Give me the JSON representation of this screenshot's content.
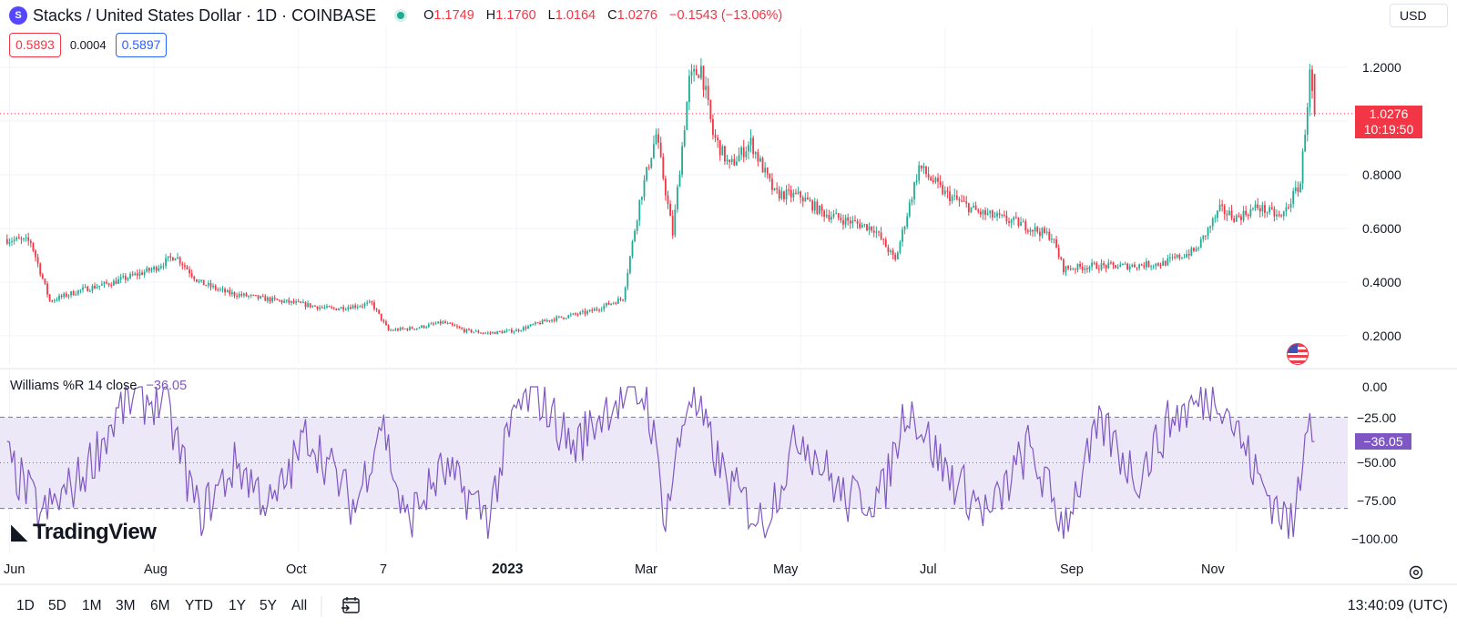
{
  "header": {
    "coin_glyph": "S",
    "symbol": "Stacks / United States Dollar · 1D · COINBASE",
    "o_label": "O",
    "o_value": "1.1749",
    "h_label": "H",
    "h_value": "1.1760",
    "l_label": "L",
    "l_value": "1.0164",
    "c_label": "C",
    "c_value": "1.0276",
    "change": "−0.1543 (−13.06%)",
    "live_icon": "live-dot-icon"
  },
  "bidask": {
    "sell": "0.5893",
    "spread": "0.0004",
    "buy": "0.5897"
  },
  "currency": "USD",
  "indicator": {
    "name": "Williams %R",
    "params": "14 close",
    "value": "−36.05"
  },
  "price_axis": [
    "1.2000",
    "0.8000",
    "0.6000",
    "0.4000",
    "0.2000"
  ],
  "last_price": {
    "value": "1.0276",
    "countdown": "10:19:50"
  },
  "wr_axis": [
    "0.00",
    "−25.00",
    "−50.00",
    "−75.00",
    "−100.00"
  ],
  "wr_last": "−36.05",
  "time_axis": [
    "Jun",
    "Aug",
    "Oct",
    "7",
    "2023",
    "Mar",
    "May",
    "Jul",
    "Sep",
    "Nov"
  ],
  "watermark": "TradingView",
  "ranges": [
    "1D",
    "5D",
    "1M",
    "3M",
    "6M",
    "YTD",
    "1Y",
    "5Y",
    "All"
  ],
  "clock": "13:40:09 (UTC)",
  "colors": {
    "up": "#22ab94",
    "down": "#f23645",
    "wr_line": "#7e57c2",
    "wr_band": "#ede8f7"
  },
  "chart_data": [
    {
      "type": "candlestick",
      "title": "Stacks / United States Dollar · 1D · COINBASE",
      "y_unit": "USD",
      "ylim": [
        0.13,
        1.33
      ],
      "y_ticks": [
        0.2,
        0.4,
        0.6,
        0.8,
        1.2
      ],
      "x_ticks": [
        "Jun",
        "Aug",
        "Oct",
        "7",
        "2023",
        "Mar",
        "May",
        "Jul",
        "Sep",
        "Nov"
      ],
      "last": {
        "open": 1.1749,
        "high": 1.176,
        "low": 1.0164,
        "close": 1.0276
      },
      "approx_close_path": [
        [
          "2022-05-31",
          0.56
        ],
        [
          "2022-06-10",
          0.55
        ],
        [
          "2022-06-18",
          0.33
        ],
        [
          "2022-07-01",
          0.37
        ],
        [
          "2022-07-15",
          0.4
        ],
        [
          "2022-08-01",
          0.45
        ],
        [
          "2022-08-10",
          0.5
        ],
        [
          "2022-08-20",
          0.4
        ],
        [
          "2022-09-01",
          0.36
        ],
        [
          "2022-09-15",
          0.34
        ],
        [
          "2022-10-01",
          0.32
        ],
        [
          "2022-10-15",
          0.3
        ],
        [
          "2022-11-01",
          0.32
        ],
        [
          "2022-11-08",
          0.22
        ],
        [
          "2022-11-20",
          0.23
        ],
        [
          "2022-12-01",
          0.25
        ],
        [
          "2022-12-10",
          0.22
        ],
        [
          "2022-12-20",
          0.21
        ],
        [
          "2023-01-01",
          0.22
        ],
        [
          "2023-01-15",
          0.26
        ],
        [
          "2023-02-01",
          0.29
        ],
        [
          "2023-02-15",
          0.34
        ],
        [
          "2023-02-22",
          0.7
        ],
        [
          "2023-03-01",
          0.95
        ],
        [
          "2023-03-08",
          0.58
        ],
        [
          "2023-03-15",
          1.15
        ],
        [
          "2023-03-20",
          1.2
        ],
        [
          "2023-03-25",
          0.95
        ],
        [
          "2023-04-01",
          0.83
        ],
        [
          "2023-04-10",
          0.92
        ],
        [
          "2023-04-20",
          0.73
        ],
        [
          "2023-05-01",
          0.72
        ],
        [
          "2023-05-10",
          0.66
        ],
        [
          "2023-05-20",
          0.63
        ],
        [
          "2023-06-01",
          0.6
        ],
        [
          "2023-06-10",
          0.48
        ],
        [
          "2023-06-20",
          0.83
        ],
        [
          "2023-07-01",
          0.73
        ],
        [
          "2023-07-15",
          0.66
        ],
        [
          "2023-08-01",
          0.62
        ],
        [
          "2023-08-15",
          0.57
        ],
        [
          "2023-08-20",
          0.45
        ],
        [
          "2023-09-01",
          0.46
        ],
        [
          "2023-09-15",
          0.46
        ],
        [
          "2023-10-01",
          0.47
        ],
        [
          "2023-10-15",
          0.52
        ],
        [
          "2023-10-25",
          0.67
        ],
        [
          "2023-11-01",
          0.64
        ],
        [
          "2023-11-10",
          0.68
        ],
        [
          "2023-11-20",
          0.64
        ],
        [
          "2023-11-28",
          0.77
        ],
        [
          "2023-12-02",
          1.17
        ],
        [
          "2023-12-04",
          1.03
        ]
      ]
    },
    {
      "type": "line",
      "title": "Williams %R 14 close",
      "ylim": [
        -100,
        0
      ],
      "y_ticks": [
        0,
        -25,
        -50,
        -75,
        -100
      ],
      "bands": [
        -20,
        -50,
        -80
      ],
      "last_value": -36.05,
      "approx_path": [
        [
          "2022-05-31",
          -48
        ],
        [
          "2022-06-15",
          -85
        ],
        [
          "2022-07-01",
          -60
        ],
        [
          "2022-07-20",
          -10
        ],
        [
          "2022-08-05",
          -8
        ],
        [
          "2022-08-20",
          -85
        ],
        [
          "2022-09-05",
          -50
        ],
        [
          "2022-09-20",
          -80
        ],
        [
          "2022-10-05",
          -30
        ],
        [
          "2022-10-25",
          -80
        ],
        [
          "2022-11-05",
          -20
        ],
        [
          "2022-11-15",
          -90
        ],
        [
          "2022-12-01",
          -55
        ],
        [
          "2022-12-20",
          -85
        ],
        [
          "2023-01-01",
          -15
        ],
        [
          "2023-01-10",
          -5
        ],
        [
          "2023-01-25",
          -40
        ],
        [
          "2023-02-10",
          -10
        ],
        [
          "2023-02-25",
          -5
        ],
        [
          "2023-03-05",
          -85
        ],
        [
          "2023-03-15",
          -3
        ],
        [
          "2023-03-30",
          -60
        ],
        [
          "2023-04-15",
          -90
        ],
        [
          "2023-05-01",
          -30
        ],
        [
          "2023-05-20",
          -75
        ],
        [
          "2023-06-05",
          -70
        ],
        [
          "2023-06-15",
          -10
        ],
        [
          "2023-07-01",
          -55
        ],
        [
          "2023-07-20",
          -85
        ],
        [
          "2023-08-05",
          -40
        ],
        [
          "2023-08-20",
          -90
        ],
        [
          "2023-09-05",
          -25
        ],
        [
          "2023-09-20",
          -60
        ],
        [
          "2023-10-05",
          -20
        ],
        [
          "2023-10-25",
          -4
        ],
        [
          "2023-11-10",
          -60
        ],
        [
          "2023-11-25",
          -95
        ],
        [
          "2023-12-02",
          -2
        ],
        [
          "2023-12-04",
          -36.05
        ]
      ]
    }
  ]
}
